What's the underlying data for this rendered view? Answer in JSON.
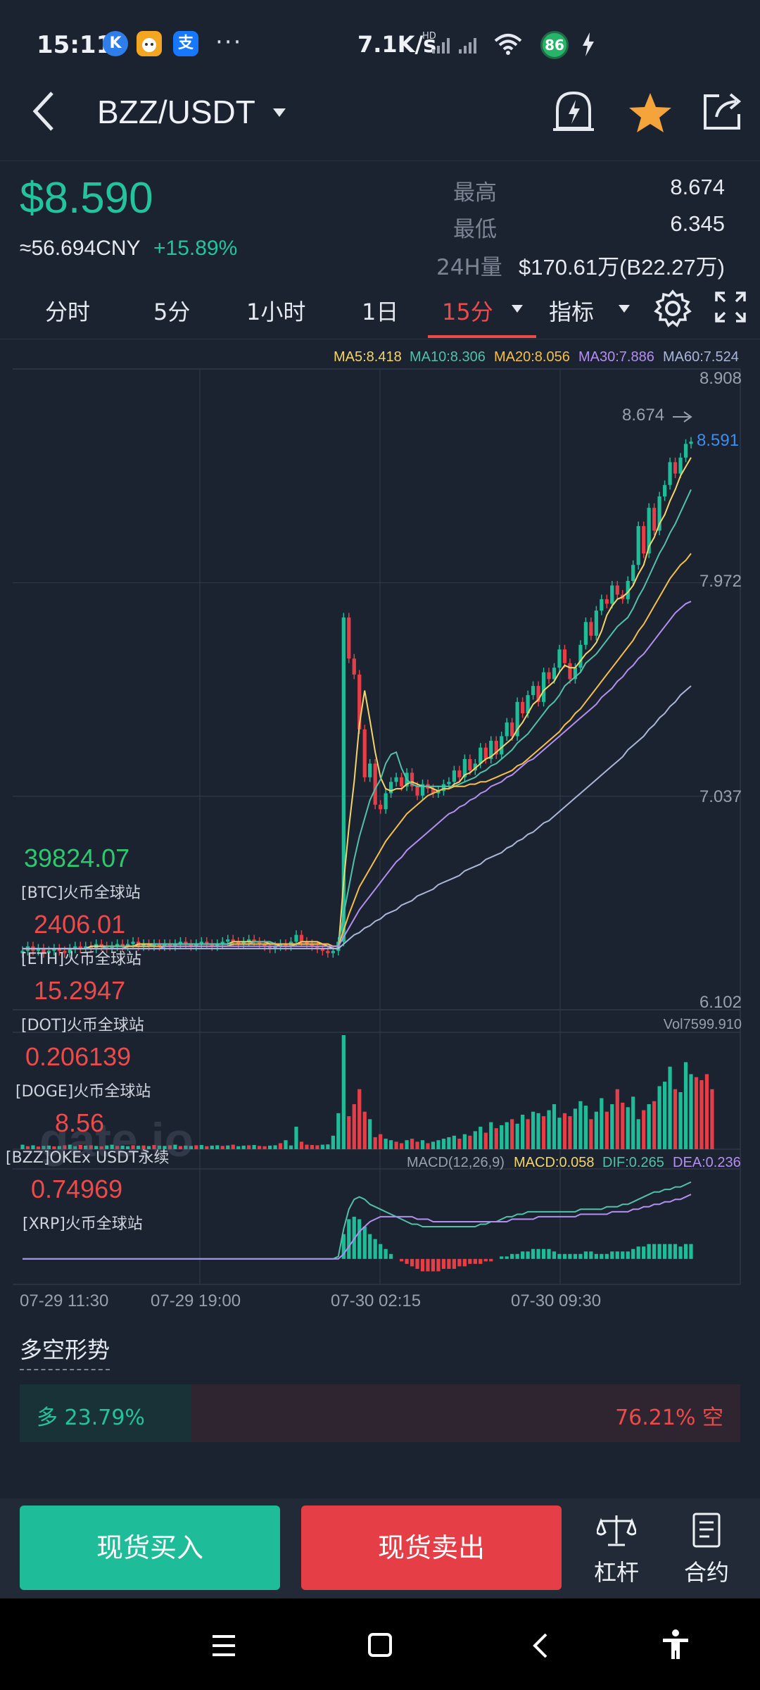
{
  "status_bar": {
    "time": "15:11",
    "app_icons": [
      "K",
      "支"
    ],
    "more": "···",
    "net_speed": "7.1K/s",
    "hd": "HD",
    "battery": "86"
  },
  "header": {
    "pair": "BZZ/USDT",
    "icons": [
      "back-icon",
      "dropdown-icon",
      "price-alert-icon",
      "star-icon",
      "share-icon"
    ]
  },
  "summary": {
    "price": "$8.590",
    "cny": "≈56.694CNY",
    "change": "+15.89%",
    "high_label": "最高",
    "high": "8.674",
    "low_label": "最低",
    "low": "6.345",
    "vol_label": "24H量",
    "vol": "$170.61万(B22.27万)"
  },
  "tabs": {
    "items": [
      "分时",
      "5分",
      "1小时",
      "1日",
      "15分",
      "指标"
    ],
    "active": "15分"
  },
  "chart_data": {
    "type": "candlestick",
    "title": "BZZ/USDT 15分",
    "ma_legend": [
      {
        "label": "MA5:8.418",
        "color": "#f3d56a"
      },
      {
        "label": "MA10:8.306",
        "color": "#52c1a8"
      },
      {
        "label": "MA20:8.056",
        "color": "#f5c04a"
      },
      {
        "label": "MA30:7.886",
        "color": "#b38ff0"
      },
      {
        "label": "MA60:7.524",
        "color": "#a9b8d8"
      }
    ],
    "price_axis": [
      "8.908",
      "7.972",
      "7.037",
      "6.102"
    ],
    "ylim": [
      6.102,
      8.908
    ],
    "high_marker": "8.674",
    "current_marker": "8.591",
    "time_labels": [
      "07-29 11:30",
      "07-29 19:00",
      "07-30 02:15",
      "07-30 09:30"
    ],
    "price_series": [
      6.36,
      6.38,
      6.36,
      6.37,
      6.35,
      6.36,
      6.37,
      6.36,
      6.35,
      6.37,
      6.38,
      6.37,
      6.38,
      6.37,
      6.39,
      6.38,
      6.37,
      6.38,
      6.39,
      6.38,
      6.39,
      6.4,
      6.38,
      6.39,
      6.38,
      6.39,
      6.38,
      6.39,
      6.38,
      6.39,
      6.4,
      6.39,
      6.38,
      6.39,
      6.4,
      6.39,
      6.38,
      6.39,
      6.4,
      6.41,
      6.4,
      6.39,
      6.4,
      6.41,
      6.4,
      6.39,
      6.38,
      6.37,
      6.38,
      6.39,
      6.38,
      6.4,
      6.43,
      6.4,
      6.39,
      6.38,
      6.37,
      6.36,
      6.35,
      6.36,
      6.4,
      7.82,
      7.64,
      7.57,
      7.33,
      7.12,
      7.18,
      7.0,
      6.98,
      7.05,
      7.1,
      7.12,
      7.08,
      7.14,
      7.08,
      7.04,
      7.09,
      7.07,
      7.05,
      7.06,
      7.09,
      7.1,
      7.15,
      7.12,
      7.2,
      7.15,
      7.18,
      7.25,
      7.2,
      7.28,
      7.22,
      7.3,
      7.36,
      7.3,
      7.45,
      7.4,
      7.48,
      7.52,
      7.45,
      7.58,
      7.55,
      7.6,
      7.68,
      7.62,
      7.55,
      7.6,
      7.7,
      7.8,
      7.74,
      7.85,
      7.9,
      7.88,
      7.96,
      7.92,
      7.9,
      7.98,
      8.05,
      8.22,
      8.1,
      8.3,
      8.2,
      8.35,
      8.4,
      8.5,
      8.45,
      8.52,
      8.58,
      8.59
    ],
    "ma5": [
      6.37,
      6.37,
      6.37,
      6.37,
      6.37,
      6.37,
      6.37,
      6.37,
      6.37,
      6.37,
      6.37,
      6.37,
      6.37,
      6.38,
      6.38,
      6.38,
      6.38,
      6.38,
      6.38,
      6.38,
      6.38,
      6.38,
      6.39,
      6.39,
      6.39,
      6.39,
      6.39,
      6.39,
      6.39,
      6.39,
      6.39,
      6.39,
      6.39,
      6.39,
      6.39,
      6.39,
      6.39,
      6.39,
      6.39,
      6.39,
      6.4,
      6.4,
      6.4,
      6.4,
      6.4,
      6.4,
      6.4,
      6.39,
      6.39,
      6.38,
      6.38,
      6.38,
      6.39,
      6.4,
      6.4,
      6.4,
      6.4,
      6.39,
      6.38,
      6.37,
      6.37,
      6.66,
      6.9,
      7.1,
      7.35,
      7.5,
      7.37,
      7.23,
      7.12,
      7.07,
      7.06,
      7.07,
      7.07,
      7.09,
      7.1,
      7.09,
      7.08,
      7.08,
      7.07,
      7.06,
      7.07,
      7.07,
      7.09,
      7.1,
      7.13,
      7.14,
      7.16,
      7.18,
      7.2,
      7.21,
      7.23,
      7.25,
      7.27,
      7.29,
      7.33,
      7.36,
      7.4,
      7.44,
      7.46,
      7.5,
      7.52,
      7.54,
      7.58,
      7.61,
      7.6,
      7.6,
      7.63,
      7.66,
      7.68,
      7.71,
      7.76,
      7.83,
      7.87,
      7.9,
      7.91,
      7.93,
      7.96,
      8.01,
      8.05,
      8.13,
      8.17,
      8.23,
      8.27,
      8.33,
      8.38,
      8.44,
      8.48,
      8.52
    ],
    "ma10": [
      6.37,
      6.37,
      6.37,
      6.37,
      6.37,
      6.37,
      6.37,
      6.37,
      6.37,
      6.37,
      6.37,
      6.37,
      6.37,
      6.37,
      6.37,
      6.37,
      6.38,
      6.38,
      6.38,
      6.38,
      6.38,
      6.38,
      6.38,
      6.38,
      6.38,
      6.39,
      6.39,
      6.39,
      6.39,
      6.39,
      6.39,
      6.39,
      6.39,
      6.39,
      6.39,
      6.39,
      6.39,
      6.39,
      6.39,
      6.39,
      6.39,
      6.39,
      6.39,
      6.39,
      6.4,
      6.4,
      6.4,
      6.4,
      6.39,
      6.39,
      6.39,
      6.39,
      6.39,
      6.39,
      6.39,
      6.39,
      6.39,
      6.39,
      6.39,
      6.38,
      6.38,
      6.52,
      6.64,
      6.76,
      6.86,
      6.94,
      7.02,
      7.07,
      7.11,
      7.18,
      7.22,
      7.23,
      7.16,
      7.11,
      7.09,
      7.08,
      7.08,
      7.08,
      7.08,
      7.08,
      7.08,
      7.08,
      7.08,
      7.09,
      7.1,
      7.11,
      7.12,
      7.14,
      7.15,
      7.17,
      7.18,
      7.2,
      7.22,
      7.24,
      7.27,
      7.29,
      7.31,
      7.34,
      7.37,
      7.4,
      7.43,
      7.45,
      7.48,
      7.52,
      7.54,
      7.56,
      7.58,
      7.62,
      7.64,
      7.66,
      7.69,
      7.72,
      7.75,
      7.78,
      7.8,
      7.82,
      7.86,
      7.91,
      7.95,
      8.0,
      8.05,
      8.1,
      8.14,
      8.19,
      8.23,
      8.28,
      8.33,
      8.38
    ],
    "ma20": [
      6.37,
      6.37,
      6.37,
      6.37,
      6.37,
      6.37,
      6.37,
      6.37,
      6.37,
      6.37,
      6.37,
      6.37,
      6.37,
      6.37,
      6.37,
      6.37,
      6.37,
      6.37,
      6.37,
      6.37,
      6.38,
      6.38,
      6.38,
      6.38,
      6.38,
      6.38,
      6.38,
      6.38,
      6.38,
      6.38,
      6.38,
      6.38,
      6.38,
      6.38,
      6.38,
      6.38,
      6.38,
      6.38,
      6.38,
      6.38,
      6.39,
      6.39,
      6.39,
      6.39,
      6.39,
      6.39,
      6.39,
      6.39,
      6.39,
      6.39,
      6.39,
      6.39,
      6.39,
      6.39,
      6.39,
      6.39,
      6.39,
      6.39,
      6.39,
      6.38,
      6.38,
      6.45,
      6.52,
      6.58,
      6.64,
      6.68,
      6.72,
      6.76,
      6.8,
      6.84,
      6.87,
      6.9,
      6.93,
      6.96,
      6.98,
      7.0,
      7.02,
      7.04,
      7.05,
      7.06,
      7.07,
      7.07,
      7.08,
      7.08,
      7.08,
      7.09,
      7.09,
      7.1,
      7.1,
      7.11,
      7.12,
      7.13,
      7.14,
      7.15,
      7.17,
      7.18,
      7.2,
      7.22,
      7.24,
      7.26,
      7.28,
      7.3,
      7.32,
      7.35,
      7.37,
      7.4,
      7.42,
      7.45,
      7.48,
      7.51,
      7.54,
      7.57,
      7.6,
      7.63,
      7.66,
      7.69,
      7.72,
      7.76,
      7.79,
      7.83,
      7.87,
      7.91,
      7.95,
      7.99,
      8.02,
      8.05,
      8.07,
      8.1
    ],
    "ma30": [
      6.37,
      6.37,
      6.37,
      6.37,
      6.37,
      6.37,
      6.37,
      6.37,
      6.37,
      6.37,
      6.37,
      6.37,
      6.37,
      6.37,
      6.37,
      6.37,
      6.37,
      6.37,
      6.37,
      6.37,
      6.37,
      6.37,
      6.37,
      6.37,
      6.37,
      6.37,
      6.37,
      6.38,
      6.38,
      6.38,
      6.38,
      6.38,
      6.38,
      6.38,
      6.38,
      6.38,
      6.38,
      6.38,
      6.38,
      6.38,
      6.38,
      6.38,
      6.38,
      6.38,
      6.38,
      6.38,
      6.38,
      6.38,
      6.38,
      6.38,
      6.38,
      6.38,
      6.38,
      6.38,
      6.38,
      6.38,
      6.38,
      6.38,
      6.38,
      6.38,
      6.38,
      6.42,
      6.46,
      6.5,
      6.54,
      6.57,
      6.6,
      6.63,
      6.66,
      6.69,
      6.72,
      6.75,
      6.77,
      6.8,
      6.82,
      6.84,
      6.86,
      6.88,
      6.9,
      6.92,
      6.94,
      6.96,
      6.97,
      6.99,
      7.0,
      7.02,
      7.03,
      7.05,
      7.06,
      7.08,
      7.09,
      7.1,
      7.12,
      7.13,
      7.15,
      7.17,
      7.19,
      7.2,
      7.22,
      7.24,
      7.26,
      7.28,
      7.3,
      7.32,
      7.34,
      7.36,
      7.38,
      7.4,
      7.42,
      7.44,
      7.47,
      7.49,
      7.51,
      7.54,
      7.56,
      7.59,
      7.61,
      7.64,
      7.66,
      7.69,
      7.72,
      7.75,
      7.78,
      7.81,
      7.84,
      7.86,
      7.88,
      7.89
    ],
    "ma60": [
      6.37,
      6.37,
      6.37,
      6.37,
      6.37,
      6.37,
      6.37,
      6.37,
      6.37,
      6.37,
      6.37,
      6.37,
      6.37,
      6.37,
      6.37,
      6.37,
      6.37,
      6.37,
      6.37,
      6.37,
      6.37,
      6.37,
      6.37,
      6.37,
      6.37,
      6.37,
      6.37,
      6.37,
      6.37,
      6.37,
      6.37,
      6.37,
      6.37,
      6.37,
      6.37,
      6.37,
      6.37,
      6.37,
      6.37,
      6.37,
      6.37,
      6.37,
      6.37,
      6.37,
      6.37,
      6.37,
      6.37,
      6.37,
      6.37,
      6.37,
      6.37,
      6.37,
      6.37,
      6.37,
      6.37,
      6.37,
      6.37,
      6.37,
      6.37,
      6.37,
      6.37,
      6.39,
      6.41,
      6.43,
      6.44,
      6.46,
      6.47,
      6.49,
      6.5,
      6.52,
      6.53,
      6.54,
      6.56,
      6.57,
      6.58,
      6.6,
      6.61,
      6.62,
      6.63,
      6.65,
      6.66,
      6.67,
      6.68,
      6.69,
      6.71,
      6.72,
      6.73,
      6.74,
      6.76,
      6.77,
      6.78,
      6.79,
      6.81,
      6.82,
      6.84,
      6.85,
      6.87,
      6.88,
      6.9,
      6.92,
      6.93,
      6.95,
      6.97,
      6.99,
      7.01,
      7.03,
      7.05,
      7.07,
      7.09,
      7.11,
      7.13,
      7.15,
      7.17,
      7.19,
      7.21,
      7.24,
      7.26,
      7.28,
      7.3,
      7.33,
      7.35,
      7.38,
      7.4,
      7.43,
      7.45,
      7.48,
      7.5,
      7.52
    ],
    "volume": {
      "label": "Vol7599.910",
      "values": [
        300,
        200,
        260,
        180,
        220,
        240,
        190,
        210,
        260,
        300,
        200,
        280,
        240,
        260,
        220,
        190,
        250,
        300,
        220,
        240,
        200,
        260,
        230,
        250,
        210,
        280,
        240,
        220,
        260,
        300,
        210,
        240,
        220,
        260,
        280,
        200,
        240,
        260,
        220,
        250,
        300,
        200,
        240,
        260,
        280,
        220,
        200,
        240,
        260,
        400,
        600,
        250,
        1500,
        500,
        300,
        280,
        260,
        300,
        320,
        900,
        2400,
        7600,
        2200,
        3000,
        4000,
        2500,
        2000,
        800,
        1000,
        700,
        600,
        500,
        400,
        600,
        700,
        500,
        600,
        400,
        500,
        600,
        700,
        800,
        900,
        700,
        1000,
        900,
        1200,
        1500,
        1100,
        1800,
        1400,
        1600,
        1800,
        2000,
        1700,
        2300,
        2000,
        2500,
        2400,
        2200,
        2600,
        3000,
        2100,
        2400,
        2200,
        2700,
        3200,
        2900,
        2000,
        2500,
        3400,
        2500,
        3000,
        4000,
        3100,
        2800,
        3500,
        2000,
        2600,
        3000,
        3200,
        4200,
        4500,
        5500,
        4000,
        3800,
        5800,
        5000,
        4800,
        4600,
        5000,
        4000
      ],
      "up": [
        1,
        0,
        1,
        0,
        1,
        1,
        0,
        1,
        0,
        1,
        1,
        0,
        1,
        0,
        1,
        0,
        1,
        1,
        0,
        1,
        1,
        0,
        1,
        0,
        1,
        0,
        1,
        1,
        0,
        1,
        0,
        1,
        1,
        0,
        1,
        0,
        1,
        1,
        0,
        1,
        0,
        1,
        1,
        0,
        1,
        0,
        0,
        1,
        1,
        0,
        1,
        1,
        1,
        0,
        0,
        0,
        0,
        1,
        1,
        1,
        1,
        1,
        0,
        0,
        0,
        0,
        1,
        0,
        0,
        1,
        1,
        0,
        0,
        1,
        0,
        0,
        1,
        0,
        1,
        1,
        1,
        1,
        1,
        0,
        1,
        0,
        1,
        1,
        0,
        1,
        0,
        1,
        1,
        0,
        1,
        1,
        0,
        1,
        1,
        0,
        1,
        1,
        1,
        0,
        0,
        1,
        1,
        1,
        0,
        1,
        1,
        0,
        1,
        0,
        0,
        1,
        1,
        1,
        0,
        1,
        0,
        1,
        1,
        1,
        0,
        1,
        1,
        1
      ]
    },
    "macd": {
      "label": "MACD(12,26,9)",
      "macd_label": "MACD:0.058",
      "dif_label": "DIF:0.265",
      "dea_label": "DEA:0.236",
      "ylim": [
        -0.08,
        0.34
      ],
      "hist": [
        0,
        0,
        0,
        0,
        0,
        0,
        0,
        0,
        0,
        0,
        0,
        0,
        0,
        0,
        0,
        0,
        0,
        0,
        0,
        0,
        0,
        0,
        0,
        0,
        0,
        0,
        0,
        0,
        0,
        0,
        0,
        0,
        0,
        0,
        0,
        0,
        0,
        0,
        0,
        0,
        0,
        0,
        0,
        0,
        0,
        0,
        0,
        0,
        0,
        0,
        0,
        0,
        0,
        0,
        0,
        0,
        0,
        0,
        0,
        0,
        0,
        0.1,
        0.16,
        0.17,
        0.16,
        0.13,
        0.1,
        0.08,
        0.06,
        0.04,
        0.02,
        0.0,
        -0.01,
        -0.02,
        -0.03,
        -0.04,
        -0.05,
        -0.05,
        -0.05,
        -0.05,
        -0.04,
        -0.04,
        -0.04,
        -0.03,
        -0.03,
        -0.02,
        -0.02,
        -0.02,
        -0.01,
        -0.01,
        0.0,
        0.01,
        0.01,
        0.02,
        0.02,
        0.03,
        0.03,
        0.04,
        0.04,
        0.04,
        0.04,
        0.03,
        0.02,
        0.02,
        0.02,
        0.02,
        0.02,
        0.03,
        0.03,
        0.02,
        0.02,
        0.02,
        0.03,
        0.03,
        0.03,
        0.03,
        0.04,
        0.05,
        0.05,
        0.06,
        0.06,
        0.06,
        0.06,
        0.06,
        0.06,
        0.05,
        0.06,
        0.06
      ],
      "dif": [
        0,
        0,
        0,
        0,
        0,
        0,
        0,
        0,
        0,
        0,
        0,
        0,
        0,
        0,
        0,
        0,
        0,
        0,
        0,
        0,
        0,
        0,
        0,
        0,
        0,
        0,
        0,
        0,
        0,
        0,
        0,
        0,
        0,
        0,
        0,
        0,
        0,
        0,
        0,
        0,
        0,
        0,
        0,
        0,
        0,
        0,
        0,
        0,
        0,
        0,
        0,
        0,
        0,
        0,
        0,
        0,
        0,
        0,
        0,
        0,
        0.01,
        0.12,
        0.2,
        0.24,
        0.25,
        0.24,
        0.22,
        0.21,
        0.2,
        0.19,
        0.18,
        0.17,
        0.16,
        0.15,
        0.14,
        0.14,
        0.13,
        0.13,
        0.13,
        0.13,
        0.13,
        0.13,
        0.13,
        0.13,
        0.13,
        0.13,
        0.13,
        0.14,
        0.14,
        0.15,
        0.15,
        0.16,
        0.17,
        0.17,
        0.18,
        0.18,
        0.19,
        0.19,
        0.19,
        0.19,
        0.19,
        0.19,
        0.19,
        0.19,
        0.19,
        0.19,
        0.2,
        0.2,
        0.2,
        0.2,
        0.2,
        0.21,
        0.21,
        0.21,
        0.22,
        0.22,
        0.23,
        0.24,
        0.25,
        0.26,
        0.27,
        0.27,
        0.28,
        0.28,
        0.29,
        0.29,
        0.3,
        0.31
      ],
      "dea": [
        0,
        0,
        0,
        0,
        0,
        0,
        0,
        0,
        0,
        0,
        0,
        0,
        0,
        0,
        0,
        0,
        0,
        0,
        0,
        0,
        0,
        0,
        0,
        0,
        0,
        0,
        0,
        0,
        0,
        0,
        0,
        0,
        0,
        0,
        0,
        0,
        0,
        0,
        0,
        0,
        0,
        0,
        0,
        0,
        0,
        0,
        0,
        0,
        0,
        0,
        0,
        0,
        0,
        0,
        0,
        0,
        0,
        0,
        0,
        0,
        0,
        0.02,
        0.05,
        0.08,
        0.11,
        0.13,
        0.15,
        0.16,
        0.17,
        0.17,
        0.17,
        0.17,
        0.17,
        0.17,
        0.17,
        0.16,
        0.16,
        0.16,
        0.15,
        0.15,
        0.15,
        0.15,
        0.15,
        0.15,
        0.15,
        0.15,
        0.15,
        0.15,
        0.15,
        0.15,
        0.15,
        0.15,
        0.15,
        0.16,
        0.16,
        0.16,
        0.16,
        0.16,
        0.17,
        0.17,
        0.17,
        0.17,
        0.17,
        0.17,
        0.17,
        0.17,
        0.18,
        0.18,
        0.18,
        0.18,
        0.18,
        0.18,
        0.19,
        0.19,
        0.19,
        0.19,
        0.2,
        0.2,
        0.21,
        0.21,
        0.22,
        0.22,
        0.23,
        0.23,
        0.24,
        0.24,
        0.25,
        0.26
      ]
    }
  },
  "tickers": [
    {
      "value": "39824.07",
      "source": "[BTC]火币全球站",
      "color": "#2cc96e"
    },
    {
      "value": "2406.01",
      "source": "[ETH]火币全球站",
      "color": "#ee4a4a"
    },
    {
      "value": "15.2947",
      "source": "[DOT]火币全球站",
      "color": "#ee4a4a"
    },
    {
      "value": "0.206139",
      "source": "[DOGE]火币全球站",
      "color": "#ee4a4a"
    },
    {
      "value": "8.56",
      "source": "[BZZ]OKEx USDT永续",
      "color": "#ee4a4a"
    },
    {
      "value": "0.74969",
      "source": "[XRP]火币全球站",
      "color": "#ee4a4a"
    }
  ],
  "watermark": "gate.io",
  "long_short": {
    "title": "多空形势",
    "long_label": "多 23.79%",
    "short_label": "76.21% 空",
    "long_ratio": 0.2379
  },
  "actions": {
    "buy": "现货买入",
    "sell": "现货卖出",
    "margin": "杠杆",
    "futures": "合约"
  }
}
